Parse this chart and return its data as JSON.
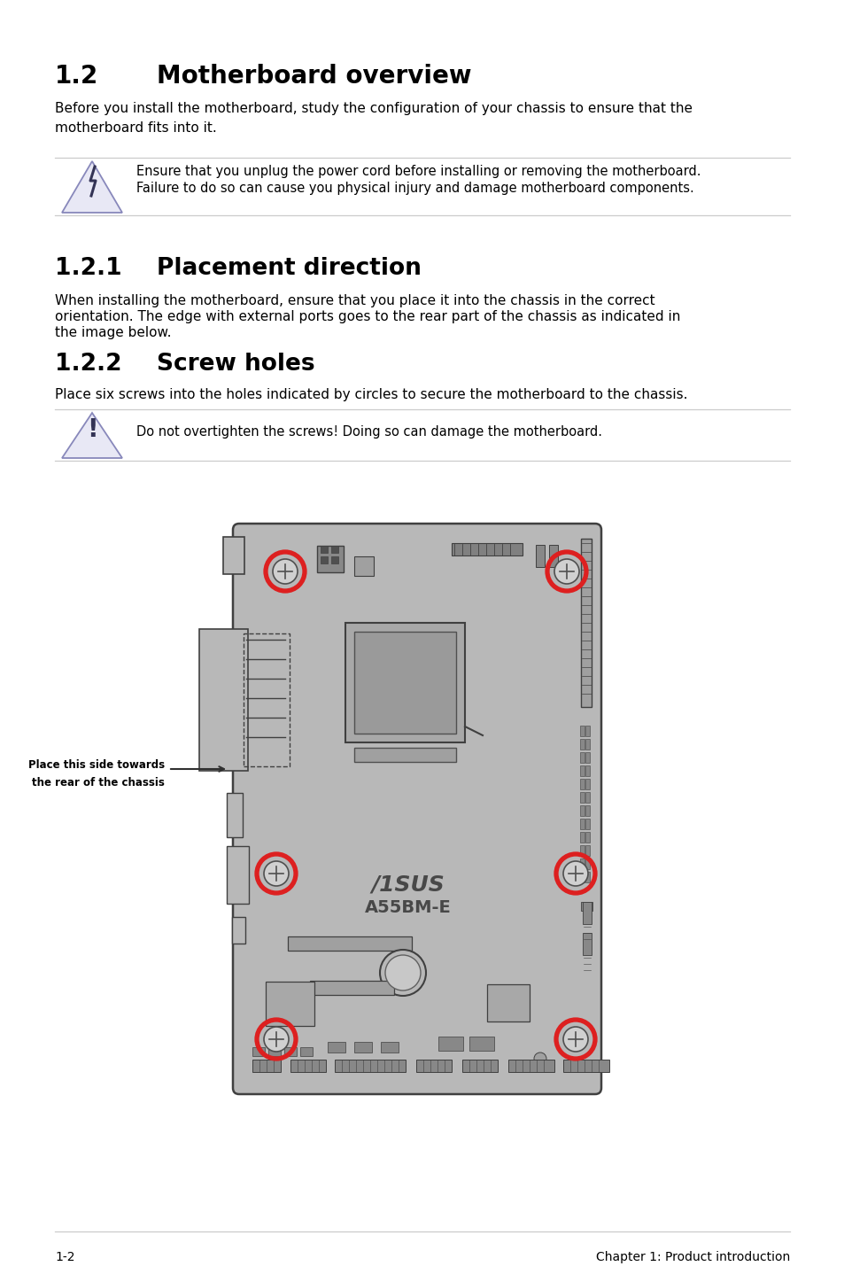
{
  "title_section": "1.2",
  "title_text": "Motherboard overview",
  "body_text1": "Before you install the motherboard, study the configuration of your chassis to ensure that the\nmotherboard fits into it.",
  "warning1_line1": "Ensure that you unplug the power cord before installing or removing the motherboard.",
  "warning1_line2": "Failure to do so can cause you physical injury and damage motherboard components.",
  "section121": "1.2.1",
  "section121_title": "Placement direction",
  "body_text2_l1": "When installing the motherboard, ensure that you place it into the chassis in the correct",
  "body_text2_l2": "orientation. The edge with external ports goes to the rear part of the chassis as indicated in",
  "body_text2_l3": "the image below.",
  "section122": "1.2.2",
  "section122_title": "Screw holes",
  "body_text3": "Place six screws into the holes indicated by circles to secure the motherboard to the chassis.",
  "warning2_text": "Do not overtighten the screws! Doing so can damage the motherboard.",
  "label_text_l1": "Place this side towards",
  "label_text_l2": "the rear of the chassis",
  "footer_left": "1-2",
  "footer_right": "Chapter 1: Product introduction",
  "bg_color": "#ffffff",
  "text_color": "#000000",
  "board_color": "#b8b8b8",
  "board_edge": "#404040",
  "red_screw": "#dd2020",
  "tri_face": "#e8e8f5",
  "tri_edge": "#8888bb",
  "sep_line": "#cccccc",
  "dark": "#404040",
  "medium": "#808080",
  "light": "#c0c0c0"
}
